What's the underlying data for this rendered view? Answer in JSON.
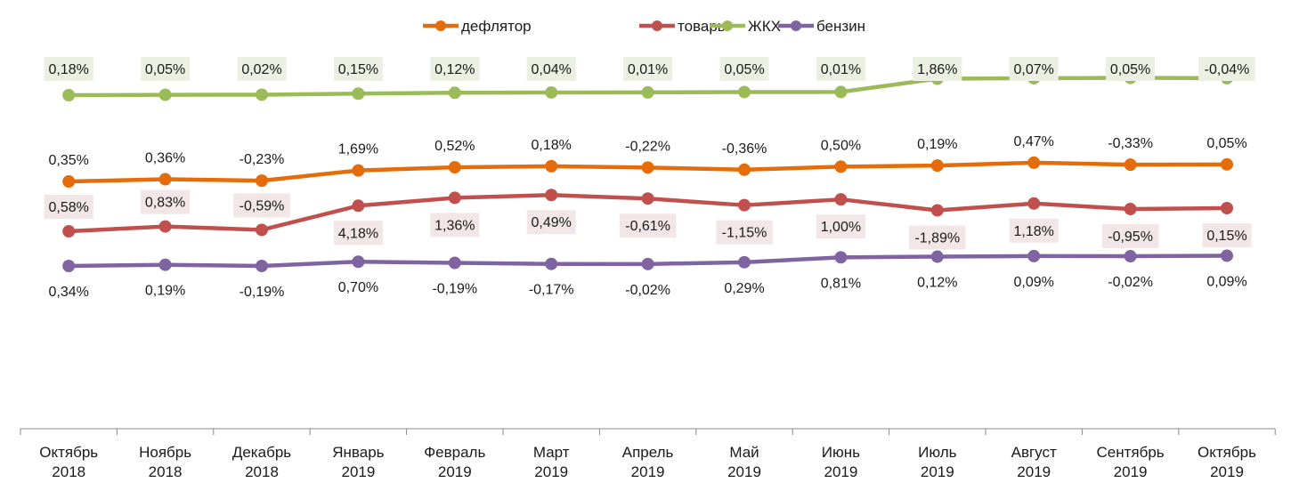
{
  "chart_data": {
    "type": "line",
    "title": "",
    "xlabel": "",
    "ylabel": "",
    "grid": false,
    "legend_position": "top",
    "categories": [
      [
        "Октябрь",
        "2018"
      ],
      [
        "Ноябрь",
        "2018"
      ],
      [
        "Декабрь",
        "2018"
      ],
      [
        "Январь",
        "2019"
      ],
      [
        "Февраль",
        "2019"
      ],
      [
        "Март",
        "2019"
      ],
      [
        "Апрель",
        "2019"
      ],
      [
        "Май",
        "2019"
      ],
      [
        "Июнь",
        "2019"
      ],
      [
        "Июль",
        "2019"
      ],
      [
        "Август",
        "2019"
      ],
      [
        "Сентябрь",
        "2019"
      ],
      [
        "Октябрь",
        "2019"
      ]
    ],
    "series": [
      {
        "name": "дефлятор",
        "color": "#e46c0a",
        "values": [
          0.35,
          0.36,
          -0.23,
          1.69,
          0.52,
          0.18,
          -0.22,
          -0.36,
          0.5,
          0.19,
          0.47,
          -0.33,
          0.05
        ],
        "labels": [
          "0,35%",
          "0,36%",
          "-0,23%",
          "1,69%",
          "0,52%",
          "0,18%",
          "-0,22%",
          "-0,36%",
          "0,50%",
          "0,19%",
          "0,47%",
          "-0,33%",
          "0,05%"
        ]
      },
      {
        "name": "товары",
        "color": "#c0504d",
        "label_bg": "#f2e6e6",
        "values": [
          0.58,
          0.83,
          -0.59,
          4.18,
          1.36,
          0.49,
          -0.61,
          -1.15,
          1.0,
          -1.89,
          1.18,
          -0.95,
          0.15
        ],
        "labels": [
          "0,58%",
          "0,83%",
          "-0,59%",
          "4,18%",
          "1,36%",
          "0,49%",
          "-0,61%",
          "-1,15%",
          "1,00%",
          "-1,89%",
          "1,18%",
          "-0,95%",
          "0,15%"
        ]
      },
      {
        "name": "ЖКХ",
        "color": "#9bbb59",
        "label_bg": "#ebf0e3",
        "values": [
          0.18,
          0.05,
          0.02,
          0.15,
          0.12,
          0.04,
          0.01,
          0.05,
          0.01,
          1.86,
          0.07,
          0.05,
          -0.04
        ],
        "labels": [
          "0,18%",
          "0,05%",
          "0,02%",
          "0,15%",
          "0,12%",
          "0,04%",
          "0,01%",
          "0,05%",
          "0,01%",
          "1,86%",
          "0,07%",
          "0,05%",
          "-0,04%"
        ]
      },
      {
        "name": "бензин",
        "color": "#8064a2",
        "values": [
          0.34,
          0.19,
          -0.19,
          0.7,
          -0.19,
          -0.17,
          -0.02,
          0.29,
          0.81,
          0.12,
          0.09,
          -0.02,
          0.09
        ],
        "labels": [
          "0,34%",
          "0,19%",
          "-0,19%",
          "0,70%",
          "-0,19%",
          "-0,17%",
          "-0,02%",
          "0,29%",
          "0,81%",
          "0,12%",
          "0,09%",
          "-0,02%",
          "0,09%"
        ]
      }
    ]
  }
}
